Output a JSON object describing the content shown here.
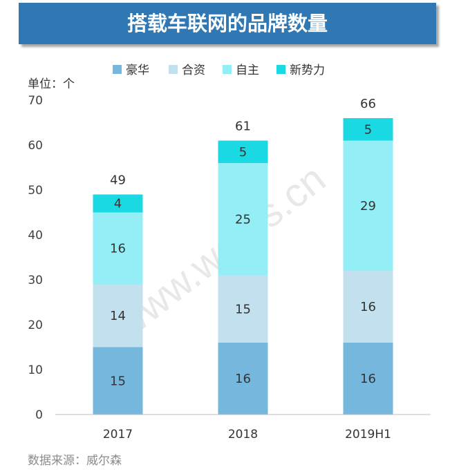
{
  "chart_data": {
    "type": "bar",
    "stacked": true,
    "title": "搭载车联网的品牌数量",
    "unit_label": "单位：个",
    "categories": [
      "2017",
      "2018",
      "2019H1"
    ],
    "series": [
      {
        "name": "豪华",
        "color": "#75b7dd",
        "values": [
          15,
          16,
          16
        ]
      },
      {
        "name": "合资",
        "color": "#c2e0ee",
        "values": [
          14,
          15,
          16
        ]
      },
      {
        "name": "自主",
        "color": "#93eef6",
        "values": [
          16,
          25,
          29
        ]
      },
      {
        "name": "新势力",
        "color": "#1ad9e3",
        "values": [
          4,
          5,
          5
        ]
      }
    ],
    "totals": [
      49,
      61,
      66
    ],
    "y_ticks": [
      0,
      10,
      20,
      30,
      40,
      50,
      60,
      70
    ],
    "ylim": [
      0,
      70
    ],
    "grid": false,
    "legend_position": "top"
  },
  "watermark": "www.way-s.cn",
  "source": "数据来源：威尔森"
}
